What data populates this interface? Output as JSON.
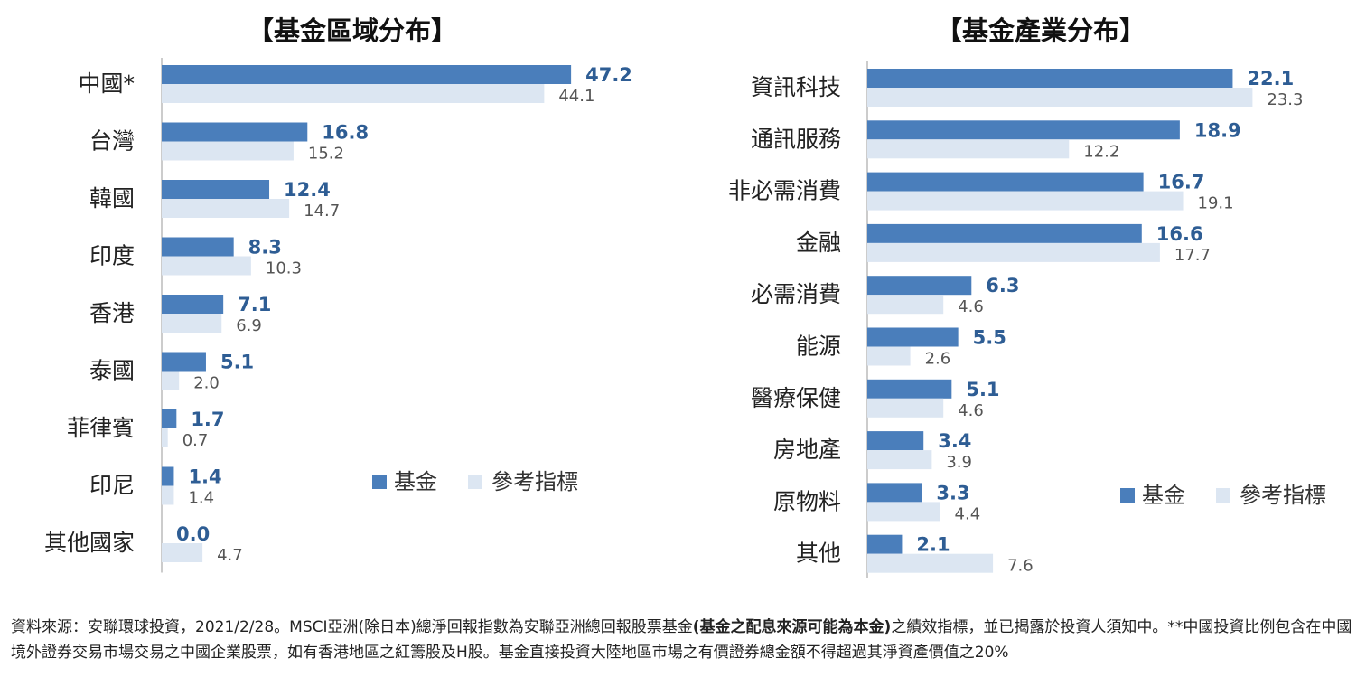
{
  "colors": {
    "fund": "#4a7ebb",
    "benchmark": "#dce6f2",
    "fund_label": "#2e5d94",
    "bench_label": "#555555",
    "axis": "#bbbbbb"
  },
  "chart_data": [
    {
      "type": "bar",
      "orientation": "horizontal",
      "title": "【基金區域分布】",
      "categories": [
        "中國*",
        "台灣",
        "韓國",
        "印度",
        "香港",
        "泰國",
        "菲律賓",
        "印尼",
        "其他國家"
      ],
      "series": [
        {
          "name": "基金",
          "values": [
            47.2,
            16.8,
            12.4,
            8.3,
            7.1,
            5.1,
            1.7,
            1.4,
            0.0
          ]
        },
        {
          "name": "參考指標",
          "values": [
            44.1,
            15.2,
            14.7,
            10.3,
            6.9,
            2.0,
            0.7,
            1.4,
            4.7
          ]
        }
      ],
      "value_labels": {
        "fund": [
          "47.2",
          "16.8",
          "12.4",
          "8.3",
          "7.1",
          "5.1",
          "1.7",
          "1.4",
          "0.0"
        ],
        "benchmark": [
          "44.1",
          "15.2",
          "14.7",
          "10.3",
          "6.9",
          "2.0",
          "0.7",
          "1.4",
          "4.7"
        ]
      },
      "xlim": [
        0,
        50
      ],
      "grid": false,
      "legend": "right-bottom"
    },
    {
      "type": "bar",
      "orientation": "horizontal",
      "title": "【基金產業分布】",
      "categories": [
        "資訊科技",
        "通訊服務",
        "非必需消費",
        "金融",
        "必需消費",
        "能源",
        "醫療保健",
        "房地產",
        "原物料",
        "其他"
      ],
      "series": [
        {
          "name": "基金",
          "values": [
            22.1,
            18.9,
            16.7,
            16.6,
            6.3,
            5.5,
            5.1,
            3.4,
            3.3,
            2.1
          ]
        },
        {
          "name": "參考指標",
          "values": [
            23.3,
            12.2,
            19.1,
            17.7,
            4.6,
            2.6,
            4.6,
            3.9,
            4.4,
            7.6
          ]
        }
      ],
      "value_labels": {
        "fund": [
          "22.1",
          "18.9",
          "16.7",
          "16.6",
          "6.3",
          "5.5",
          "5.1",
          "3.4",
          "3.3",
          "2.1"
        ],
        "benchmark": [
          "23.3",
          "12.2",
          "19.1",
          "17.7",
          "4.6",
          "2.6",
          "4.6",
          "3.9",
          "4.4",
          "7.6"
        ]
      },
      "xlim": [
        0,
        28
      ],
      "grid": false,
      "legend": "right-bottom"
    }
  ],
  "footnote": {
    "part1": "資料來源：安聯環球投資，2021/2/28。MSCI亞洲(除日本)總淨回報指數為安聯亞洲總回報股票基金",
    "bold": "(基金之配息來源可能為本金)",
    "part2": "之績效指標，並已揭露於投資人須知中。**中國投資比例包含在中國境外證券交易市場交易之中國企業股票，如有香港地區之紅籌股及H股。基金直接投資大陸地區市場之有價證券總金額不得超過其淨資產價值之20%"
  }
}
